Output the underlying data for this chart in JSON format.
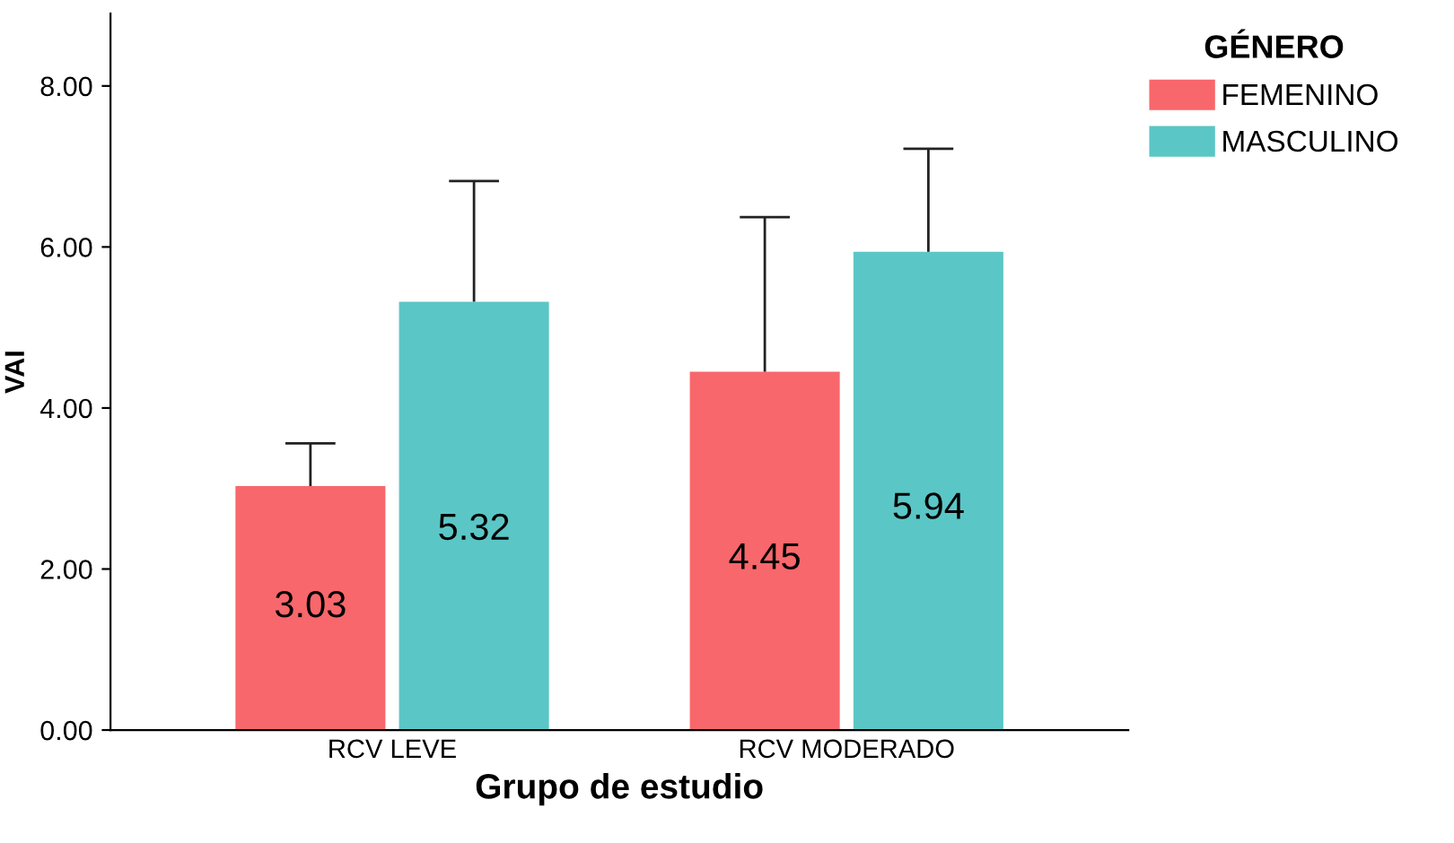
{
  "chart_data": {
    "type": "bar",
    "xlabel": "Grupo de estudio",
    "ylabel": "VAI",
    "legend_title": "GÉNERO",
    "legend": "top right",
    "categories": [
      "RCV LEVE",
      "RCV MODERADO"
    ],
    "series": [
      {
        "name": "FEMENINO",
        "color": "#f8676b",
        "values": [
          3.03,
          4.45
        ],
        "errors": [
          [
            3.03,
            3.56
          ],
          [
            4.45,
            6.37
          ]
        ]
      },
      {
        "name": "MASCULINO",
        "color": "#5bc6c6",
        "values": [
          5.32,
          5.94
        ],
        "errors": [
          [
            5.32,
            6.82
          ],
          [
            5.94,
            7.22
          ]
        ]
      }
    ],
    "data_labels": true,
    "grid": false,
    "ylim": [
      0,
      8.9
    ],
    "yticks": [
      {
        "value": 0,
        "label": "0.00"
      },
      {
        "value": 2,
        "label": "2.00"
      },
      {
        "value": 4,
        "label": "4.00"
      },
      {
        "value": 6,
        "label": "6.00"
      },
      {
        "value": 8,
        "label": "8.00"
      }
    ]
  }
}
